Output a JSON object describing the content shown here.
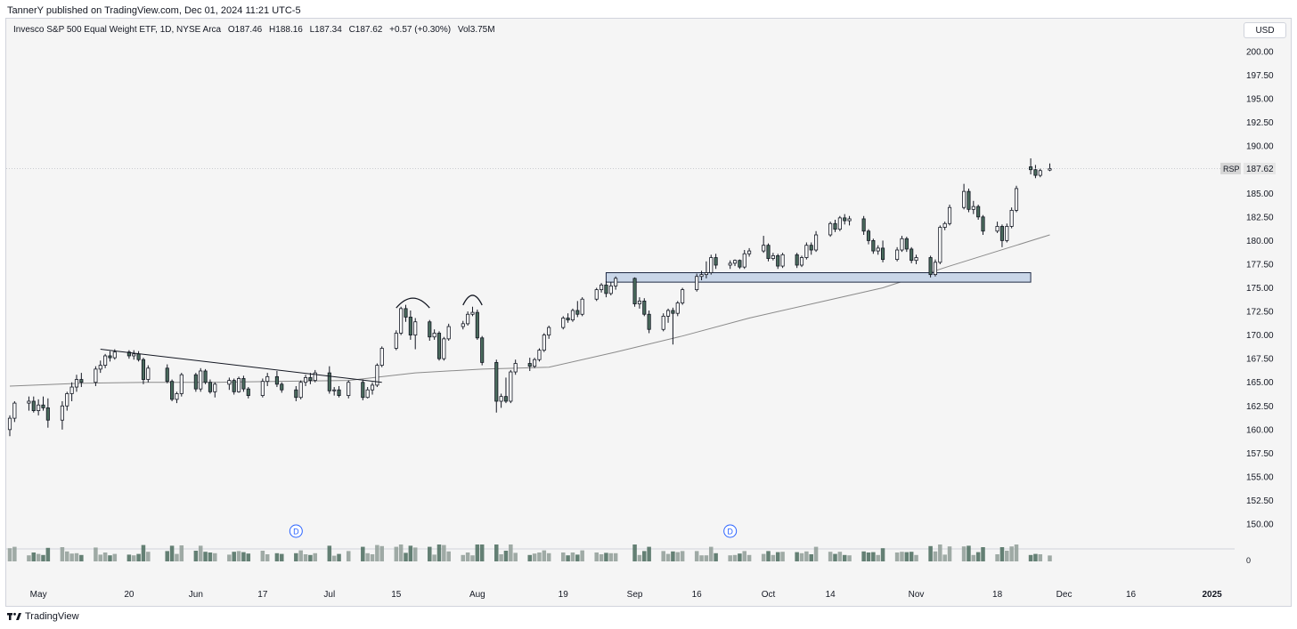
{
  "header": {
    "published_by": "TannerY published on TradingView.com, Dec 01, 2024 11:21 UTC-5"
  },
  "legend": {
    "name": "Invesco S&P 500 Equal Weight ETF, 1D, NYSE Arca",
    "open": "O187.46",
    "high": "H188.16",
    "low": "L187.34",
    "close": "C187.62",
    "change": "+0.57 (+0.30%)",
    "volume": "Vol3.75M"
  },
  "currency": "USD",
  "last_price": {
    "symbol": "RSP",
    "value": "187.62"
  },
  "footer": {
    "brand": "TradingView"
  },
  "colors": {
    "up_fill": "#ffffff",
    "down_fill": "#4a6b5d",
    "wick": "#131722",
    "ma": "#8a8a8a",
    "zone_fill": "#c9d6e8",
    "zone_border": "#1f2a44",
    "marker": "#2962ff"
  },
  "chart_data": {
    "type": "candlestick",
    "y_ticks": [
      "200.00",
      "197.50",
      "195.00",
      "192.50",
      "190.00",
      "187.50",
      "185.00",
      "182.50",
      "180.00",
      "177.50",
      "175.00",
      "172.50",
      "170.00",
      "167.50",
      "165.00",
      "162.50",
      "160.00",
      "157.50",
      "155.00",
      "152.50",
      "150.00"
    ],
    "ylim": [
      148.5,
      201.5
    ],
    "x_ticks": [
      {
        "label": "May",
        "date": "2024-05-01"
      },
      {
        "label": "20",
        "date": "2024-05-20"
      },
      {
        "label": "Jun",
        "date": "2024-06-03"
      },
      {
        "label": "17",
        "date": "2024-06-17"
      },
      {
        "label": "Jul",
        "date": "2024-07-01"
      },
      {
        "label": "15",
        "date": "2024-07-15"
      },
      {
        "label": "Aug",
        "date": "2024-08-01"
      },
      {
        "label": "19",
        "date": "2024-08-19"
      },
      {
        "label": "Sep",
        "date": "2024-09-03"
      },
      {
        "label": "16",
        "date": "2024-09-16"
      },
      {
        "label": "Oct",
        "date": "2024-10-01"
      },
      {
        "label": "14",
        "date": "2024-10-14"
      },
      {
        "label": "Nov",
        "date": "2024-11-01"
      },
      {
        "label": "18",
        "date": "2024-11-18"
      },
      {
        "label": "Dec",
        "date": "2024-12-02"
      },
      {
        "label": "16",
        "date": "2024-12-16"
      },
      {
        "label": "2025",
        "date": "2025-01-02"
      }
    ],
    "candles": [
      [
        "2024-04-25",
        160.0,
        161.5,
        159.3,
        161.2
      ],
      [
        "2024-04-26",
        161.2,
        163.0,
        160.8,
        162.8
      ],
      [
        "2024-04-29",
        162.8,
        163.5,
        162.0,
        163.0
      ],
      [
        "2024-04-30",
        163.0,
        163.5,
        161.8,
        162.0
      ],
      [
        "2024-05-01",
        162.0,
        163.2,
        161.5,
        162.6
      ],
      [
        "2024-05-02",
        162.6,
        163.5,
        162.0,
        162.3
      ],
      [
        "2024-05-03",
        162.3,
        163.3,
        160.2,
        161.0
      ],
      [
        "2024-05-06",
        161.0,
        163.0,
        160.0,
        162.5
      ],
      [
        "2024-05-07",
        162.5,
        164.0,
        162.0,
        163.8
      ],
      [
        "2024-05-08",
        163.8,
        165.0,
        163.0,
        164.5
      ],
      [
        "2024-05-09",
        164.5,
        165.8,
        164.0,
        165.3
      ],
      [
        "2024-05-10",
        165.3,
        166.0,
        164.5,
        165.0
      ],
      [
        "2024-05-13",
        165.0,
        166.7,
        164.6,
        166.4
      ],
      [
        "2024-05-14",
        166.4,
        167.3,
        166.0,
        166.8
      ],
      [
        "2024-05-15",
        166.8,
        168.0,
        166.5,
        167.8
      ],
      [
        "2024-05-16",
        167.8,
        168.3,
        167.2,
        167.6
      ],
      [
        "2024-05-17",
        167.6,
        168.5,
        167.4,
        168.2
      ],
      [
        "2024-05-20",
        168.2,
        168.4,
        167.5,
        167.8
      ],
      [
        "2024-05-21",
        167.8,
        168.4,
        167.4,
        168.0
      ],
      [
        "2024-05-22",
        168.0,
        168.3,
        167.2,
        167.4
      ],
      [
        "2024-05-23",
        167.4,
        167.6,
        164.8,
        165.3
      ],
      [
        "2024-05-24",
        165.3,
        166.8,
        165.0,
        166.5
      ],
      [
        "2024-05-28",
        166.5,
        166.9,
        164.9,
        165.1
      ],
      [
        "2024-05-29",
        165.1,
        165.3,
        163.0,
        163.2
      ],
      [
        "2024-05-30",
        163.2,
        164.0,
        162.8,
        163.8
      ],
      [
        "2024-05-31",
        163.8,
        166.0,
        163.5,
        165.8
      ],
      [
        "2024-06-03",
        165.8,
        166.0,
        164.0,
        164.3
      ],
      [
        "2024-06-04",
        164.3,
        166.5,
        164.0,
        166.2
      ],
      [
        "2024-06-05",
        166.2,
        166.4,
        164.8,
        165.0
      ],
      [
        "2024-06-06",
        165.0,
        165.3,
        163.8,
        164.0
      ],
      [
        "2024-06-07",
        164.0,
        165.0,
        163.4,
        164.8
      ],
      [
        "2024-06-10",
        164.8,
        165.5,
        164.2,
        165.2
      ],
      [
        "2024-06-11",
        165.2,
        165.4,
        163.7,
        164.0
      ],
      [
        "2024-06-12",
        164.0,
        165.6,
        163.9,
        165.4
      ],
      [
        "2024-06-13",
        165.4,
        165.7,
        164.0,
        164.3
      ],
      [
        "2024-06-14",
        164.3,
        164.5,
        163.3,
        163.6
      ],
      [
        "2024-06-17",
        163.6,
        165.4,
        163.4,
        165.1
      ],
      [
        "2024-06-18",
        165.1,
        166.0,
        164.6,
        165.6
      ],
      [
        "2024-06-20",
        165.6,
        166.2,
        164.5,
        164.8
      ],
      [
        "2024-06-21",
        164.8,
        165.0,
        163.9,
        164.2
      ],
      [
        "2024-06-24",
        164.2,
        164.6,
        163.0,
        163.4
      ],
      [
        "2024-06-25",
        163.4,
        165.2,
        163.2,
        165.0
      ],
      [
        "2024-06-26",
        165.0,
        165.8,
        164.6,
        165.5
      ],
      [
        "2024-06-27",
        165.5,
        166.0,
        164.8,
        165.2
      ],
      [
        "2024-06-28",
        165.2,
        166.3,
        165.0,
        166.0
      ],
      [
        "2024-07-01",
        166.0,
        166.7,
        163.8,
        164.1
      ],
      [
        "2024-07-02",
        164.1,
        164.5,
        163.6,
        164.2
      ],
      [
        "2024-07-03",
        164.2,
        164.6,
        163.4,
        163.6
      ],
      [
        "2024-07-05",
        163.6,
        165.2,
        163.3,
        165.0
      ],
      [
        "2024-07-08",
        165.0,
        165.3,
        163.1,
        163.4
      ],
      [
        "2024-07-09",
        163.4,
        164.5,
        163.3,
        164.2
      ],
      [
        "2024-07-10",
        164.2,
        165.0,
        163.7,
        164.7
      ],
      [
        "2024-07-11",
        164.7,
        167.0,
        164.5,
        166.8
      ],
      [
        "2024-07-12",
        166.8,
        168.8,
        166.6,
        168.6
      ],
      [
        "2024-07-15",
        168.6,
        170.5,
        168.4,
        170.2
      ],
      [
        "2024-07-16",
        170.2,
        173.0,
        170.0,
        172.8
      ],
      [
        "2024-07-17",
        172.8,
        173.2,
        171.4,
        171.9
      ],
      [
        "2024-07-18",
        171.9,
        172.6,
        169.5,
        170.0
      ],
      [
        "2024-07-19",
        170.0,
        171.8,
        168.5,
        171.4
      ],
      [
        "2024-07-22",
        171.4,
        171.6,
        169.4,
        169.8
      ],
      [
        "2024-07-23",
        169.8,
        170.6,
        169.5,
        170.2
      ],
      [
        "2024-07-24",
        170.2,
        170.4,
        167.3,
        167.5
      ],
      [
        "2024-07-25",
        167.5,
        169.8,
        167.3,
        169.6
      ],
      [
        "2024-07-26",
        169.6,
        171.2,
        169.4,
        170.9
      ],
      [
        "2024-07-29",
        170.9,
        171.5,
        170.6,
        171.2
      ],
      [
        "2024-07-30",
        171.2,
        172.5,
        171.0,
        172.2
      ],
      [
        "2024-07-31",
        172.2,
        173.0,
        172.0,
        172.4
      ],
      [
        "2024-08-01",
        172.4,
        172.7,
        169.5,
        169.7
      ],
      [
        "2024-08-02",
        169.7,
        169.9,
        166.8,
        167.1
      ],
      [
        "2024-08-05",
        167.1,
        167.4,
        161.8,
        163.0
      ],
      [
        "2024-08-06",
        163.0,
        163.8,
        162.3,
        163.5
      ],
      [
        "2024-08-07",
        163.5,
        165.5,
        162.8,
        163.0
      ],
      [
        "2024-08-08",
        163.0,
        166.3,
        162.8,
        166.1
      ],
      [
        "2024-08-09",
        166.1,
        167.4,
        165.8,
        167.0
      ],
      [
        "2024-08-12",
        167.0,
        167.6,
        166.2,
        166.7
      ],
      [
        "2024-08-13",
        166.7,
        167.6,
        166.5,
        167.4
      ],
      [
        "2024-08-14",
        167.4,
        168.6,
        167.2,
        168.4
      ],
      [
        "2024-08-15",
        168.4,
        170.2,
        168.2,
        170.0
      ],
      [
        "2024-08-16",
        170.0,
        171.0,
        169.6,
        170.8
      ],
      [
        "2024-08-19",
        170.8,
        172.0,
        170.6,
        171.8
      ],
      [
        "2024-08-20",
        171.8,
        172.3,
        171.3,
        171.6
      ],
      [
        "2024-08-21",
        171.6,
        172.8,
        171.4,
        172.6
      ],
      [
        "2024-08-22",
        172.6,
        173.6,
        171.9,
        172.2
      ],
      [
        "2024-08-23",
        172.2,
        174.0,
        172.0,
        173.8
      ],
      [
        "2024-08-26",
        173.8,
        175.0,
        173.6,
        174.8
      ],
      [
        "2024-08-27",
        174.8,
        175.5,
        174.5,
        175.3
      ],
      [
        "2024-08-28",
        175.3,
        175.7,
        174.0,
        174.4
      ],
      [
        "2024-08-29",
        174.4,
        175.6,
        174.2,
        175.2
      ],
      [
        "2024-08-30",
        175.2,
        176.2,
        174.8,
        176.0
      ],
      [
        "2024-09-03",
        176.0,
        176.1,
        173.0,
        173.3
      ],
      [
        "2024-09-04",
        173.3,
        174.0,
        172.8,
        173.6
      ],
      [
        "2024-09-05",
        173.6,
        173.9,
        172.0,
        172.2
      ],
      [
        "2024-09-06",
        172.2,
        172.6,
        170.2,
        170.6
      ],
      [
        "2024-09-09",
        170.6,
        172.3,
        170.4,
        172.0
      ],
      [
        "2024-09-10",
        172.0,
        172.8,
        171.3,
        172.6
      ],
      [
        "2024-09-11",
        172.6,
        172.9,
        169.0,
        172.3
      ],
      [
        "2024-09-12",
        172.3,
        173.6,
        172.0,
        173.4
      ],
      [
        "2024-09-13",
        173.4,
        175.0,
        173.2,
        174.8
      ],
      [
        "2024-09-16",
        174.8,
        176.5,
        174.6,
        176.2
      ],
      [
        "2024-09-17",
        176.2,
        176.8,
        175.8,
        176.4
      ],
      [
        "2024-09-18",
        176.4,
        177.8,
        176.0,
        176.6
      ],
      [
        "2024-09-19",
        176.6,
        178.5,
        176.4,
        178.2
      ],
      [
        "2024-09-20",
        178.2,
        178.6,
        177.0,
        177.4
      ],
      [
        "2024-09-23",
        177.4,
        177.9,
        177.0,
        177.6
      ],
      [
        "2024-09-24",
        177.6,
        178.0,
        177.3,
        177.9
      ],
      [
        "2024-09-25",
        177.9,
        178.0,
        177.0,
        177.2
      ],
      [
        "2024-09-26",
        177.2,
        179.0,
        177.0,
        178.6
      ],
      [
        "2024-09-27",
        178.6,
        179.2,
        178.3,
        178.9
      ],
      [
        "2024-09-30",
        178.9,
        180.5,
        178.7,
        179.5
      ],
      [
        "2024-10-01",
        179.5,
        179.7,
        177.8,
        178.1
      ],
      [
        "2024-10-02",
        178.1,
        178.7,
        177.9,
        178.4
      ],
      [
        "2024-10-03",
        178.4,
        178.6,
        177.0,
        177.3
      ],
      [
        "2024-10-04",
        177.3,
        178.7,
        177.1,
        178.5
      ],
      [
        "2024-10-07",
        178.5,
        178.7,
        177.1,
        177.4
      ],
      [
        "2024-10-08",
        177.4,
        178.4,
        177.2,
        178.2
      ],
      [
        "2024-10-09",
        178.2,
        179.8,
        178.0,
        179.5
      ],
      [
        "2024-10-10",
        179.5,
        179.8,
        178.5,
        179.0
      ],
      [
        "2024-10-11",
        179.0,
        181.0,
        178.8,
        180.6
      ],
      [
        "2024-10-14",
        180.6,
        182.0,
        180.4,
        181.8
      ],
      [
        "2024-10-15",
        181.8,
        182.2,
        180.9,
        181.2
      ],
      [
        "2024-10-16",
        181.2,
        182.6,
        181.0,
        182.4
      ],
      [
        "2024-10-17",
        182.4,
        182.8,
        181.7,
        182.1
      ],
      [
        "2024-10-18",
        182.1,
        182.6,
        181.6,
        182.3
      ],
      [
        "2024-10-21",
        182.3,
        182.6,
        180.6,
        181.0
      ],
      [
        "2024-10-22",
        181.0,
        181.2,
        179.6,
        180.0
      ],
      [
        "2024-10-23",
        180.0,
        180.2,
        178.6,
        178.9
      ],
      [
        "2024-10-24",
        178.9,
        179.5,
        178.5,
        179.2
      ],
      [
        "2024-10-25",
        179.2,
        180.0,
        177.7,
        178.0
      ],
      [
        "2024-10-28",
        178.0,
        179.3,
        177.8,
        179.0
      ],
      [
        "2024-10-29",
        179.0,
        180.5,
        178.8,
        180.2
      ],
      [
        "2024-10-30",
        180.2,
        180.4,
        178.8,
        179.1
      ],
      [
        "2024-10-31",
        179.1,
        179.3,
        177.6,
        177.9
      ],
      [
        "2024-11-01",
        177.9,
        178.5,
        177.5,
        178.2
      ],
      [
        "2024-11-04",
        178.2,
        178.4,
        176.1,
        176.4
      ],
      [
        "2024-11-05",
        176.4,
        178.0,
        176.2,
        177.7
      ],
      [
        "2024-11-06",
        177.7,
        181.6,
        177.5,
        181.4
      ],
      [
        "2024-11-07",
        181.4,
        182.0,
        181.1,
        181.8
      ],
      [
        "2024-11-08",
        181.8,
        183.8,
        181.6,
        183.5
      ],
      [
        "2024-11-11",
        183.5,
        186.0,
        183.3,
        185.2
      ],
      [
        "2024-11-12",
        185.2,
        185.5,
        183.0,
        183.3
      ],
      [
        "2024-11-13",
        183.3,
        184.2,
        182.8,
        183.6
      ],
      [
        "2024-11-14",
        183.6,
        183.8,
        182.2,
        182.5
      ],
      [
        "2024-11-15",
        182.5,
        182.7,
        180.6,
        181.0
      ],
      [
        "2024-11-18",
        181.0,
        182.0,
        180.8,
        181.5
      ],
      [
        "2024-11-19",
        181.5,
        181.7,
        179.3,
        180.0
      ],
      [
        "2024-11-20",
        180.0,
        181.8,
        179.8,
        181.5
      ],
      [
        "2024-11-21",
        181.5,
        183.5,
        181.3,
        183.2
      ],
      [
        "2024-11-22",
        183.2,
        185.8,
        183.0,
        185.5
      ],
      [
        "2024-11-25",
        187.8,
        188.7,
        187.0,
        187.5
      ],
      [
        "2024-11-26",
        187.5,
        188.0,
        186.6,
        186.9
      ],
      [
        "2024-11-27",
        186.9,
        187.6,
        186.7,
        187.4
      ],
      [
        "2024-11-29",
        187.46,
        188.16,
        187.34,
        187.62
      ]
    ],
    "moving_average": [
      [
        "2024-04-25",
        164.6
      ],
      [
        "2024-05-10",
        164.9
      ],
      [
        "2024-05-24",
        165.0
      ],
      [
        "2024-06-07",
        165.0
      ],
      [
        "2024-06-21",
        165.1
      ],
      [
        "2024-07-05",
        165.2
      ],
      [
        "2024-07-19",
        166.0
      ],
      [
        "2024-08-02",
        166.4
      ],
      [
        "2024-08-16",
        166.6
      ],
      [
        "2024-08-30",
        168.2
      ],
      [
        "2024-09-13",
        169.9
      ],
      [
        "2024-09-27",
        171.8
      ],
      [
        "2024-10-11",
        173.4
      ],
      [
        "2024-10-25",
        175.0
      ],
      [
        "2024-11-08",
        177.3
      ],
      [
        "2024-11-22",
        179.5
      ],
      [
        "2024-11-29",
        180.6
      ]
    ],
    "annotations": {
      "support_zone": {
        "x0": "2024-08-28",
        "x1": "2024-11-25",
        "y0": 175.6,
        "y1": 176.6
      },
      "trendline": {
        "x0": "2024-05-14",
        "y0": 168.5,
        "x1": "2024-07-12",
        "y1": 165.0
      },
      "head_arcs": [
        {
          "x0": "2024-07-15",
          "x1": "2024-07-22",
          "peak": 174.0
        },
        {
          "x0": "2024-07-29",
          "x1": "2024-08-02",
          "peak": 174.3
        }
      ],
      "dividend_markers": [
        {
          "date": "2024-06-24",
          "label": "D"
        },
        {
          "date": "2024-09-23",
          "label": "D"
        }
      ]
    }
  }
}
